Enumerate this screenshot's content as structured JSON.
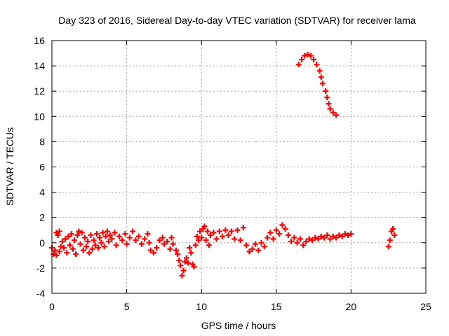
{
  "chart_data": {
    "type": "scatter",
    "title": "Day 323 of 2016, Sidereal Day-to-day VTEC variation (SDTVAR) for receiver lama",
    "xlabel": "GPS time / hours",
    "ylabel": "SDTVAR / TECUs",
    "xlim": [
      0,
      25
    ],
    "ylim": [
      -4,
      16
    ],
    "xticks": [
      0,
      5,
      10,
      15,
      20,
      25
    ],
    "yticks": [
      -4,
      -2,
      0,
      2,
      4,
      6,
      8,
      10,
      12,
      14,
      16
    ],
    "grid": true,
    "marker": "+",
    "color": "#ff0000",
    "series": [
      {
        "name": "SDTVAR",
        "points": [
          [
            0.0,
            -0.4
          ],
          [
            0.1,
            -0.9
          ],
          [
            0.2,
            -0.6
          ],
          [
            0.3,
            -1.0
          ],
          [
            0.3,
            0.8
          ],
          [
            0.4,
            0.6
          ],
          [
            0.5,
            -0.7
          ],
          [
            0.5,
            0.9
          ],
          [
            0.6,
            -0.3
          ],
          [
            0.7,
            0.1
          ],
          [
            0.8,
            -0.4
          ],
          [
            0.9,
            0.3
          ],
          [
            1.0,
            -0.8
          ],
          [
            1.1,
            0.5
          ],
          [
            1.2,
            -0.2
          ],
          [
            1.3,
            0.7
          ],
          [
            1.4,
            -0.5
          ],
          [
            1.5,
            0.2
          ],
          [
            1.6,
            -0.9
          ],
          [
            1.7,
            0.6
          ],
          [
            1.8,
            0.9
          ],
          [
            1.9,
            -0.1
          ],
          [
            2.0,
            0.8
          ],
          [
            2.1,
            -0.6
          ],
          [
            2.2,
            0.4
          ],
          [
            2.3,
            -0.3
          ],
          [
            2.4,
            0.1
          ],
          [
            2.5,
            -0.8
          ],
          [
            2.6,
            0.6
          ],
          [
            2.7,
            -0.5
          ],
          [
            2.8,
            0.2
          ],
          [
            2.9,
            -0.2
          ],
          [
            3.0,
            0.7
          ],
          [
            3.1,
            -0.4
          ],
          [
            3.2,
            0.4
          ],
          [
            3.3,
            0.0
          ],
          [
            3.4,
            0.8
          ],
          [
            3.5,
            -0.3
          ],
          [
            3.6,
            0.5
          ],
          [
            3.7,
            0.9
          ],
          [
            3.8,
            0.1
          ],
          [
            3.9,
            0.6
          ],
          [
            4.0,
            0.3
          ],
          [
            4.2,
            0.8
          ],
          [
            4.3,
            -0.2
          ],
          [
            4.5,
            0.5
          ],
          [
            4.7,
            0.2
          ],
          [
            4.9,
            0.7
          ],
          [
            5.0,
            -0.1
          ],
          [
            5.2,
            0.4
          ],
          [
            5.4,
            0.9
          ],
          [
            5.6,
            0.2
          ],
          [
            5.8,
            0.5
          ],
          [
            6.0,
            -0.1
          ],
          [
            6.2,
            0.3
          ],
          [
            6.4,
            0.7
          ],
          [
            6.5,
            0.0
          ],
          [
            6.6,
            -0.6
          ],
          [
            6.8,
            -0.8
          ],
          [
            7.0,
            -0.4
          ],
          [
            7.2,
            0.2
          ],
          [
            7.4,
            0.4
          ],
          [
            7.5,
            -0.1
          ],
          [
            7.7,
            0.1
          ],
          [
            7.9,
            -0.5
          ],
          [
            8.0,
            0.4
          ],
          [
            8.1,
            -0.1
          ],
          [
            8.3,
            -0.6
          ],
          [
            8.4,
            -0.9
          ],
          [
            8.5,
            -1.4
          ],
          [
            8.6,
            -1.8
          ],
          [
            8.7,
            -2.6
          ],
          [
            8.8,
            -2.2
          ],
          [
            8.9,
            -1.5
          ],
          [
            9.0,
            -1.2
          ],
          [
            9.1,
            -1.6
          ],
          [
            9.2,
            -0.4
          ],
          [
            9.3,
            -0.8
          ],
          [
            9.4,
            -1.7
          ],
          [
            9.5,
            -1.9
          ],
          [
            9.6,
            -0.2
          ],
          [
            9.7,
            0.5
          ],
          [
            9.8,
            0.2
          ],
          [
            9.9,
            0.9
          ],
          [
            10.0,
            0.4
          ],
          [
            10.1,
            1.1
          ],
          [
            10.2,
            1.3
          ],
          [
            10.3,
            0.2
          ],
          [
            10.4,
            0.9
          ],
          [
            10.5,
            -0.2
          ],
          [
            10.6,
            0.6
          ],
          [
            10.8,
            0.8
          ],
          [
            11.0,
            0.3
          ],
          [
            11.2,
            0.9
          ],
          [
            11.4,
            0.5
          ],
          [
            11.6,
            1.0
          ],
          [
            11.8,
            0.6
          ],
          [
            12.0,
            0.9
          ],
          [
            12.2,
            0.3
          ],
          [
            12.4,
            1.0
          ],
          [
            12.6,
            0.2
          ],
          [
            12.8,
            1.2
          ],
          [
            13.0,
            -0.2
          ],
          [
            13.2,
            -0.7
          ],
          [
            13.4,
            -0.5
          ],
          [
            13.6,
            -0.1
          ],
          [
            13.8,
            -0.6
          ],
          [
            14.0,
            0.0
          ],
          [
            14.2,
            -0.3
          ],
          [
            14.4,
            0.4
          ],
          [
            14.6,
            0.8
          ],
          [
            14.8,
            0.3
          ],
          [
            15.0,
            1.0
          ],
          [
            15.2,
            0.7
          ],
          [
            15.4,
            1.4
          ],
          [
            15.6,
            1.1
          ],
          [
            15.8,
            0.6
          ],
          [
            16.0,
            0.1
          ],
          [
            16.2,
            0.4
          ],
          [
            16.4,
            0.0
          ],
          [
            16.6,
            0.3
          ],
          [
            16.8,
            -0.2
          ],
          [
            17.0,
            0.1
          ],
          [
            17.2,
            0.3
          ],
          [
            17.4,
            0.2
          ],
          [
            17.6,
            0.4
          ],
          [
            17.8,
            0.3
          ],
          [
            18.0,
            0.5
          ],
          [
            18.2,
            0.4
          ],
          [
            18.4,
            0.6
          ],
          [
            18.6,
            0.3
          ],
          [
            18.8,
            0.5
          ],
          [
            19.0,
            0.4
          ],
          [
            19.2,
            0.6
          ],
          [
            19.4,
            0.5
          ],
          [
            19.6,
            0.7
          ],
          [
            19.8,
            0.6
          ],
          [
            20.0,
            0.7
          ],
          [
            22.5,
            -0.3
          ],
          [
            22.6,
            0.2
          ],
          [
            22.7,
            0.9
          ],
          [
            22.8,
            1.1
          ],
          [
            22.9,
            0.6
          ],
          [
            16.5,
            14.1
          ],
          [
            16.7,
            14.5
          ],
          [
            16.9,
            14.8
          ],
          [
            17.1,
            14.9
          ],
          [
            17.3,
            14.8
          ],
          [
            17.5,
            14.5
          ],
          [
            17.7,
            14.1
          ],
          [
            17.9,
            13.6
          ],
          [
            18.0,
            13.1
          ],
          [
            18.1,
            12.6
          ],
          [
            18.3,
            12.0
          ],
          [
            18.4,
            11.5
          ],
          [
            18.5,
            11.0
          ],
          [
            18.6,
            10.6
          ],
          [
            18.8,
            10.3
          ],
          [
            19.0,
            10.1
          ]
        ]
      }
    ]
  }
}
